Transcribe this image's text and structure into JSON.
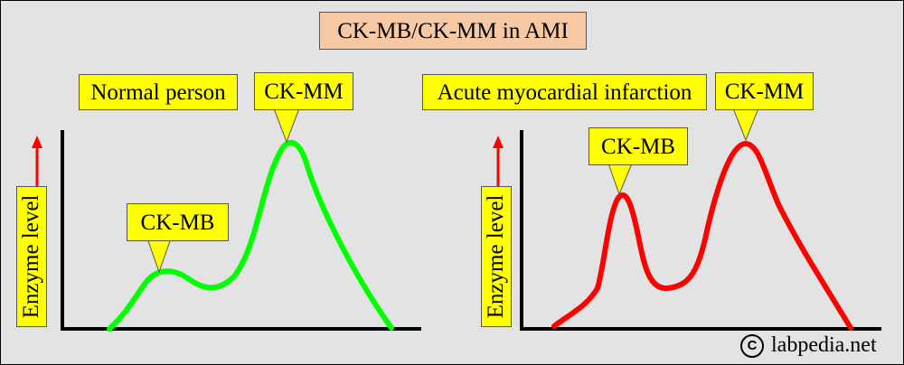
{
  "title": "CK-MB/CK-MM in AMI",
  "panels": [
    {
      "panel_label": "Normal person",
      "ylabel": "Enzyme level",
      "peak_labels": {
        "ck_mb": "CK-MB",
        "ck_mm": "CK-MM"
      },
      "curve_color": "#00ff00"
    },
    {
      "panel_label": "Acute myocardial infarction",
      "ylabel": "Enzyme level",
      "peak_labels": {
        "ck_mb": "CK-MB",
        "ck_mm": "CK-MM"
      },
      "curve_color": "#ff0000"
    }
  ],
  "colors": {
    "arrow": "#ff0000",
    "label_fill": "#ffff00",
    "title_fill": "#f7c8a4",
    "background": "#e3e3e3"
  },
  "icons": {
    "up_arrow": "up-arrow-icon",
    "copyright": "copyright-icon"
  },
  "footer": {
    "copyright_symbol": "C",
    "copyright_text": "labpedia.net"
  }
}
